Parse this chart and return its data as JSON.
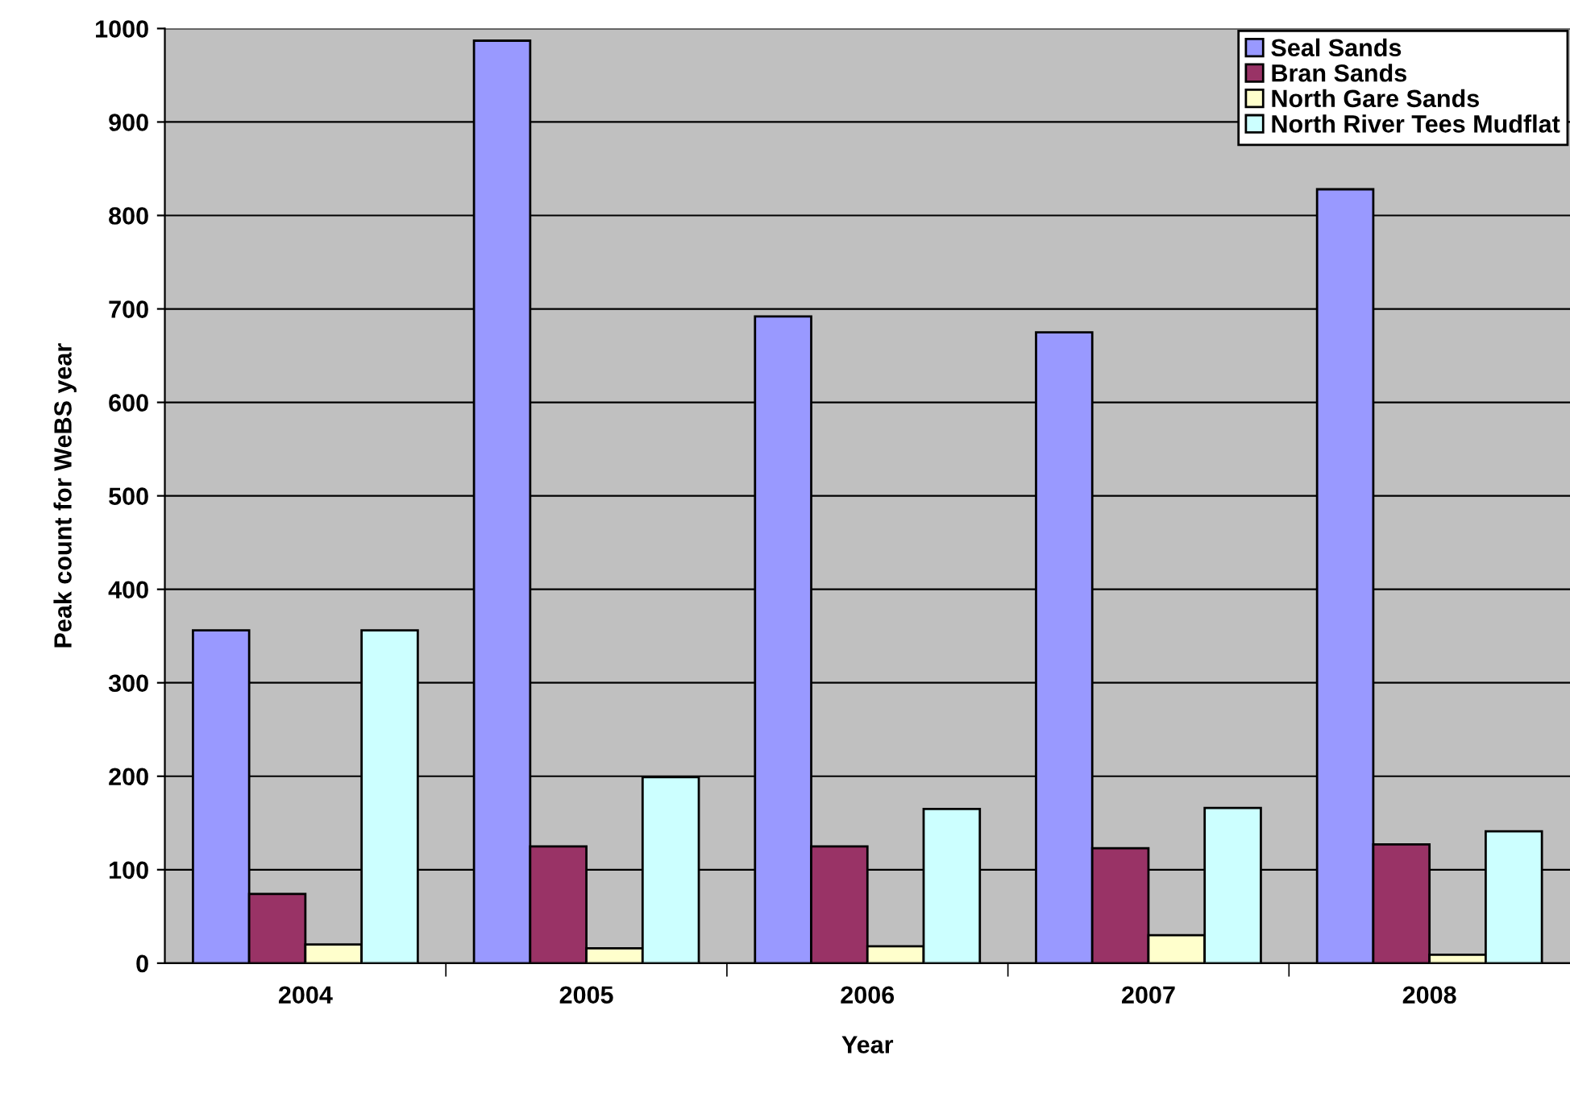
{
  "chart_data": {
    "type": "bar",
    "xlabel": "Year",
    "ylabel": "Peak count for WeBS year",
    "categories": [
      "2004",
      "2005",
      "2006",
      "2007",
      "2008"
    ],
    "series": [
      {
        "name": "Seal Sands",
        "color": "#9999ff",
        "values": [
          356,
          987,
          692,
          675,
          828
        ]
      },
      {
        "name": "Bran Sands",
        "color": "#993366",
        "values": [
          74,
          125,
          125,
          123,
          127
        ]
      },
      {
        "name": "North Gare Sands",
        "color": "#ffffcc",
        "values": [
          20,
          16,
          18,
          30,
          9
        ]
      },
      {
        "name": "North River Tees Mudflat",
        "color": "#ccffff",
        "values": [
          356,
          199,
          165,
          166,
          141
        ]
      }
    ],
    "ylim": [
      0,
      1000
    ],
    "yticks": [
      0,
      100,
      200,
      300,
      400,
      500,
      600,
      700,
      800,
      900,
      1000
    ],
    "grid": "y",
    "legend": "top right"
  }
}
